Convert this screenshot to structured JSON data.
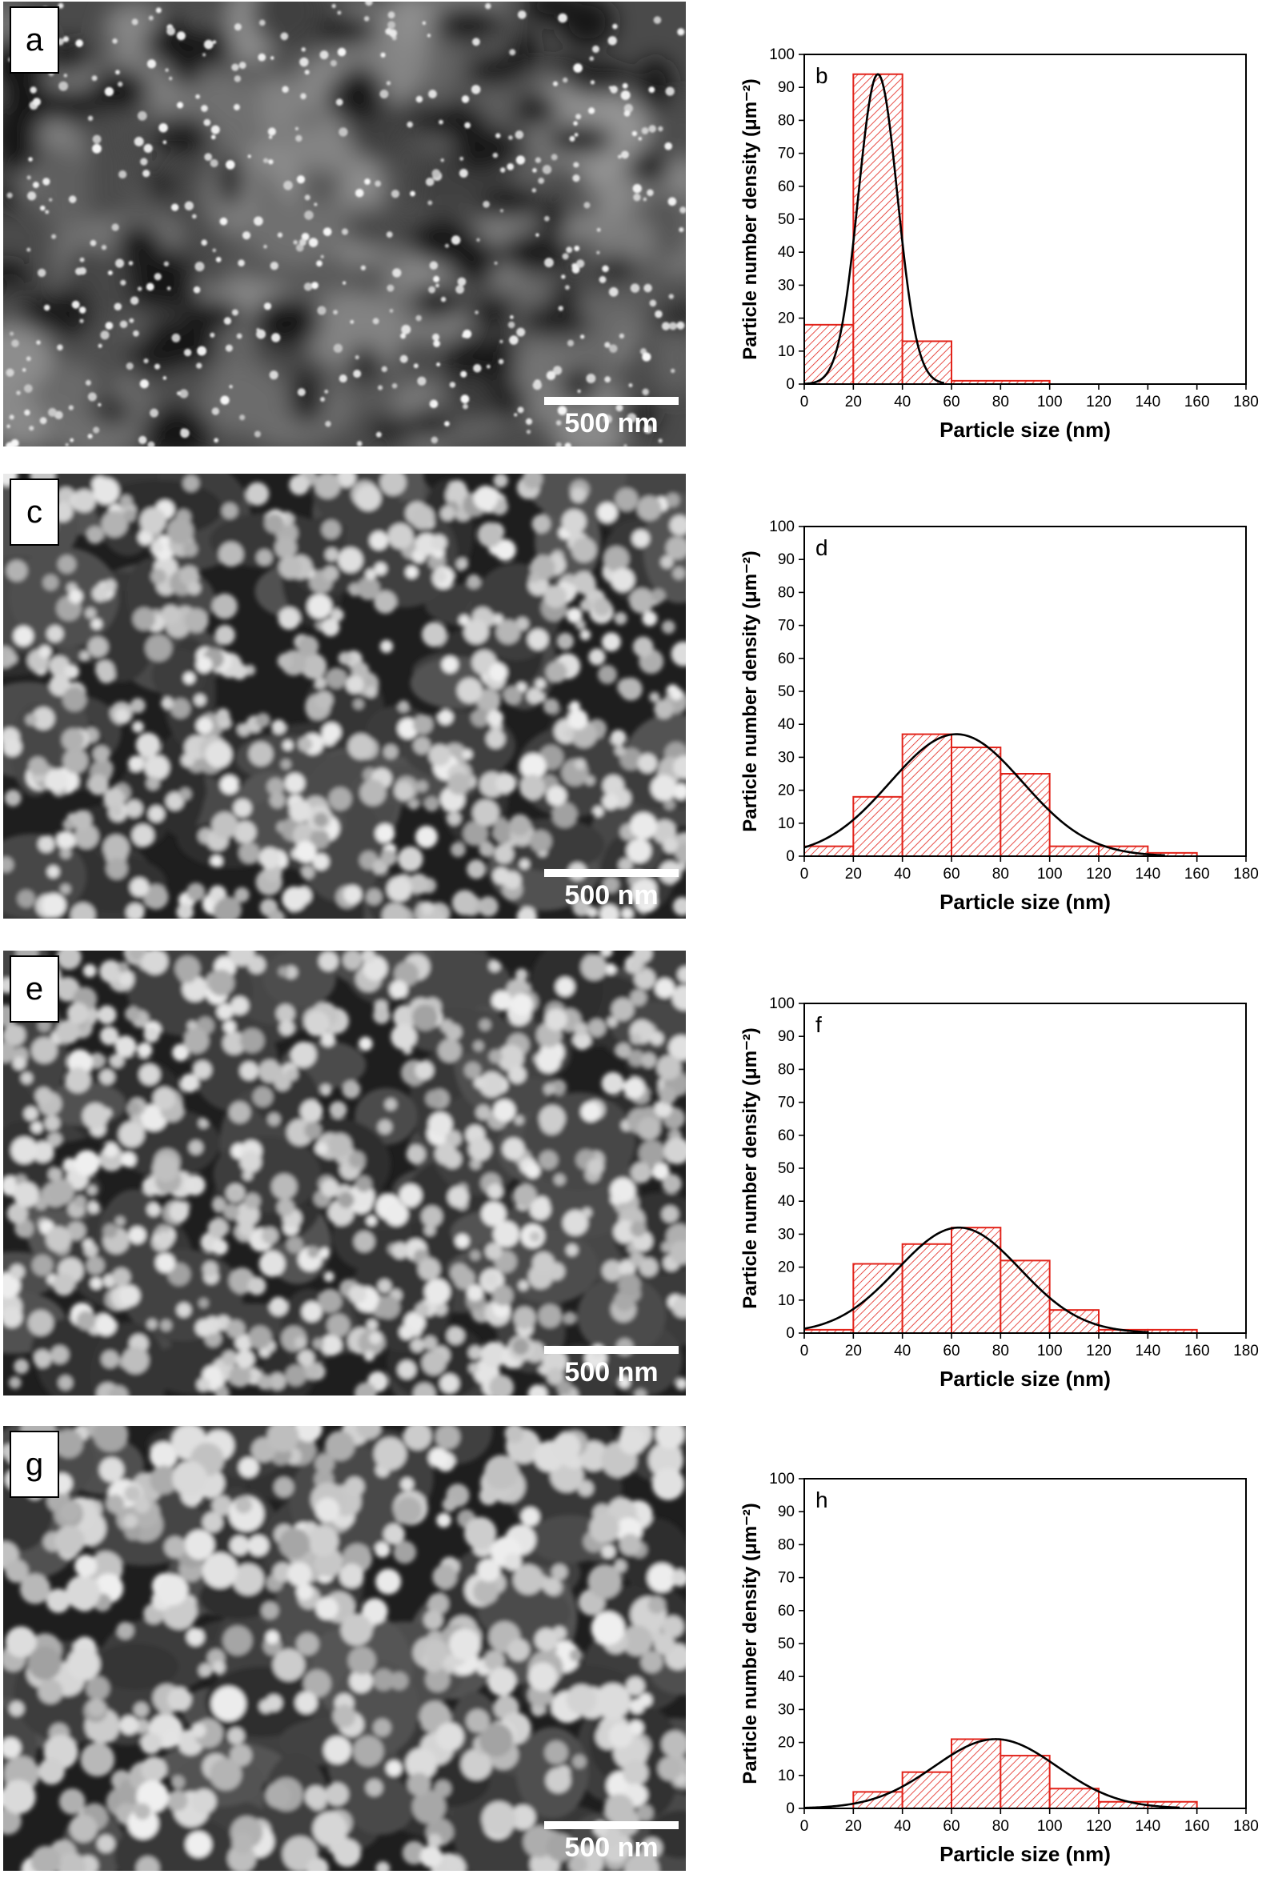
{
  "scale_bar_label": "500 nm",
  "panels": [
    {
      "image_label": "a",
      "chart_label": "b"
    },
    {
      "image_label": "c",
      "chart_label": "d"
    },
    {
      "image_label": "e",
      "chart_label": "f"
    },
    {
      "image_label": "g",
      "chart_label": "h"
    }
  ],
  "colors": {
    "bar_edge": "#e2231a",
    "fit_line": "#000000",
    "image_bg": "#2a2a2a"
  },
  "chart_data": [
    {
      "type": "bar",
      "panel": "b",
      "bins": [
        [
          0,
          20
        ],
        [
          20,
          40
        ],
        [
          40,
          60
        ],
        [
          60,
          100
        ]
      ],
      "values": [
        18,
        94,
        13,
        1
      ],
      "fit": {
        "type": "gaussian",
        "mean": 30,
        "sigma": 8,
        "peak": 94
      },
      "xlabel": "Particle size (nm)",
      "ylabel": "Particle number density (μm⁻²)",
      "xlim": [
        0,
        180
      ],
      "ylim": [
        0,
        100
      ],
      "xticks": [
        0,
        20,
        40,
        60,
        80,
        100,
        120,
        140,
        160,
        180
      ],
      "yticks": [
        0,
        10,
        20,
        30,
        40,
        50,
        60,
        70,
        80,
        90,
        100
      ],
      "grid": false
    },
    {
      "type": "bar",
      "panel": "d",
      "bins": [
        [
          0,
          20
        ],
        [
          20,
          40
        ],
        [
          40,
          60
        ],
        [
          60,
          80
        ],
        [
          80,
          100
        ],
        [
          100,
          120
        ],
        [
          120,
          140
        ],
        [
          140,
          160
        ]
      ],
      "values": [
        3,
        18,
        37,
        33,
        25,
        3,
        3,
        1
      ],
      "fit": {
        "type": "gaussian",
        "mean": 62,
        "sigma": 27,
        "peak": 37
      },
      "xlabel": "Particle size (nm)",
      "ylabel": "Particle number density (μm⁻²)",
      "xlim": [
        0,
        180
      ],
      "ylim": [
        0,
        100
      ],
      "xticks": [
        0,
        20,
        40,
        60,
        80,
        100,
        120,
        140,
        160,
        180
      ],
      "yticks": [
        0,
        10,
        20,
        30,
        40,
        50,
        60,
        70,
        80,
        90,
        100
      ],
      "grid": false
    },
    {
      "type": "bar",
      "panel": "f",
      "bins": [
        [
          0,
          20
        ],
        [
          20,
          40
        ],
        [
          40,
          60
        ],
        [
          60,
          80
        ],
        [
          80,
          100
        ],
        [
          100,
          120
        ],
        [
          120,
          140
        ],
        [
          140,
          160
        ]
      ],
      "values": [
        1,
        21,
        27,
        32,
        22,
        7,
        1,
        1
      ],
      "fit": {
        "type": "gaussian",
        "mean": 63,
        "sigma": 25,
        "peak": 32
      },
      "xlabel": "Particle size (nm)",
      "ylabel": "Particle number density (μm⁻²)",
      "xlim": [
        0,
        180
      ],
      "ylim": [
        0,
        100
      ],
      "xticks": [
        0,
        20,
        40,
        60,
        80,
        100,
        120,
        140,
        160,
        180
      ],
      "yticks": [
        0,
        10,
        20,
        30,
        40,
        50,
        60,
        70,
        80,
        90,
        100
      ],
      "grid": false
    },
    {
      "type": "bar",
      "panel": "h",
      "bins": [
        [
          0,
          20
        ],
        [
          20,
          40
        ],
        [
          40,
          60
        ],
        [
          60,
          80
        ],
        [
          80,
          100
        ],
        [
          100,
          120
        ],
        [
          120,
          140
        ],
        [
          140,
          160
        ]
      ],
      "values": [
        0,
        5,
        11,
        21,
        16,
        6,
        2,
        2
      ],
      "fit": {
        "type": "gaussian",
        "mean": 78,
        "sigma": 25,
        "peak": 21
      },
      "xlabel": "Particle size (nm)",
      "ylabel": "Particle number density (μm⁻²)",
      "xlim": [
        0,
        180
      ],
      "ylim": [
        0,
        100
      ],
      "xticks": [
        0,
        20,
        40,
        60,
        80,
        100,
        120,
        140,
        160,
        180
      ],
      "yticks": [
        0,
        10,
        20,
        30,
        40,
        50,
        60,
        70,
        80,
        90,
        100
      ],
      "grid": false
    }
  ]
}
